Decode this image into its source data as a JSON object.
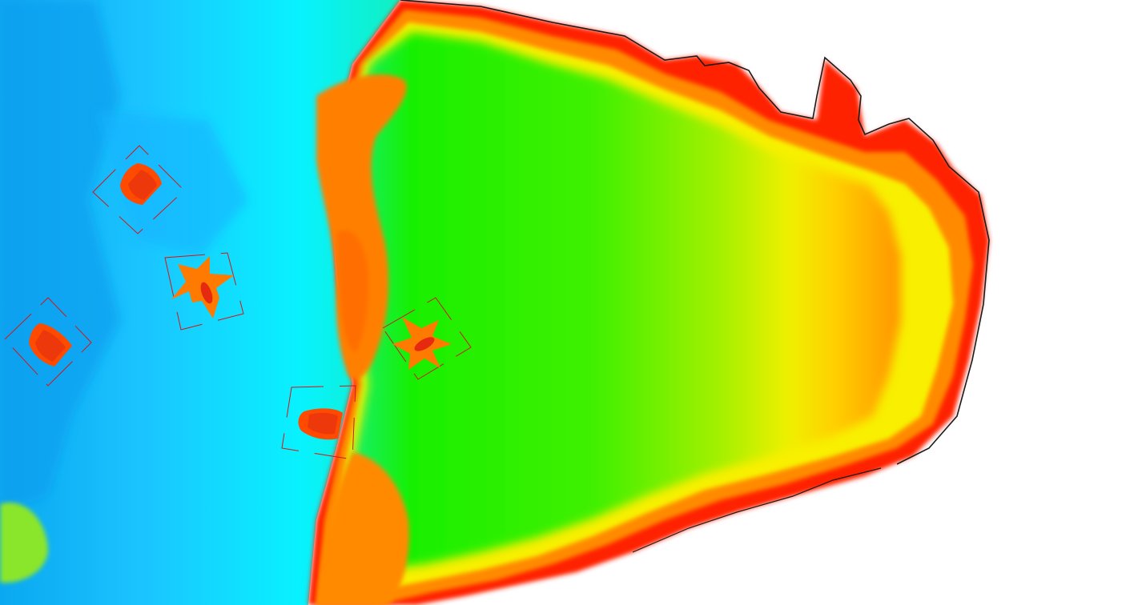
{
  "colors": {
    "background": "#ffffff",
    "deep": "#0aa8f0",
    "mid_blue": "#1bc3ff",
    "cyan": "#08f2ff",
    "green": "#18f000",
    "lime": "#a6f000",
    "yellow": "#ffe400",
    "orange": "#ff8a00",
    "red": "#ff1400",
    "coast_line": "#1a1a1a",
    "detection_box": "#d01818",
    "target_fill": "#ff5a00",
    "target_core": "#e62a10"
  },
  "targets": [
    {
      "type": "ship",
      "icon": "ship-icon"
    },
    {
      "type": "ship",
      "icon": "ship-icon"
    },
    {
      "type": "ship",
      "icon": "ship-icon"
    },
    {
      "type": "aircraft",
      "icon": "aircraft-icon"
    },
    {
      "type": "aircraft",
      "icon": "aircraft-icon"
    }
  ]
}
